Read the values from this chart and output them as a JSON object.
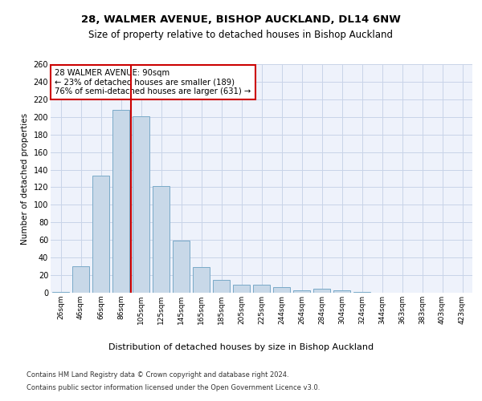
{
  "title1": "28, WALMER AVENUE, BISHOP AUCKLAND, DL14 6NW",
  "title2": "Size of property relative to detached houses in Bishop Auckland",
  "xlabel": "Distribution of detached houses by size in Bishop Auckland",
  "ylabel": "Number of detached properties",
  "footer1": "Contains HM Land Registry data © Crown copyright and database right 2024.",
  "footer2": "Contains public sector information licensed under the Open Government Licence v3.0.",
  "annotation_title": "28 WALMER AVENUE: 90sqm",
  "annotation_line1": "← 23% of detached houses are smaller (189)",
  "annotation_line2": "76% of semi-detached houses are larger (631) →",
  "bar_color": "#c8d8e8",
  "bar_edge_color": "#7aaac8",
  "red_line_color": "#cc0000",
  "grid_color": "#c8d4e8",
  "bg_color": "#eef2fb",
  "categories": [
    "26sqm",
    "46sqm",
    "66sqm",
    "86sqm",
    "105sqm",
    "125sqm",
    "145sqm",
    "165sqm",
    "185sqm",
    "205sqm",
    "225sqm",
    "244sqm",
    "264sqm",
    "284sqm",
    "304sqm",
    "324sqm",
    "344sqm",
    "363sqm",
    "383sqm",
    "403sqm",
    "423sqm"
  ],
  "bar_heights": [
    1,
    30,
    133,
    208,
    201,
    121,
    59,
    29,
    15,
    9,
    9,
    6,
    3,
    5,
    3,
    1,
    0,
    0,
    0,
    0,
    0
  ],
  "red_line_index": 3.5,
  "ylim": [
    0,
    260
  ],
  "yticks": [
    0,
    20,
    40,
    60,
    80,
    100,
    120,
    140,
    160,
    180,
    200,
    220,
    240,
    260
  ]
}
